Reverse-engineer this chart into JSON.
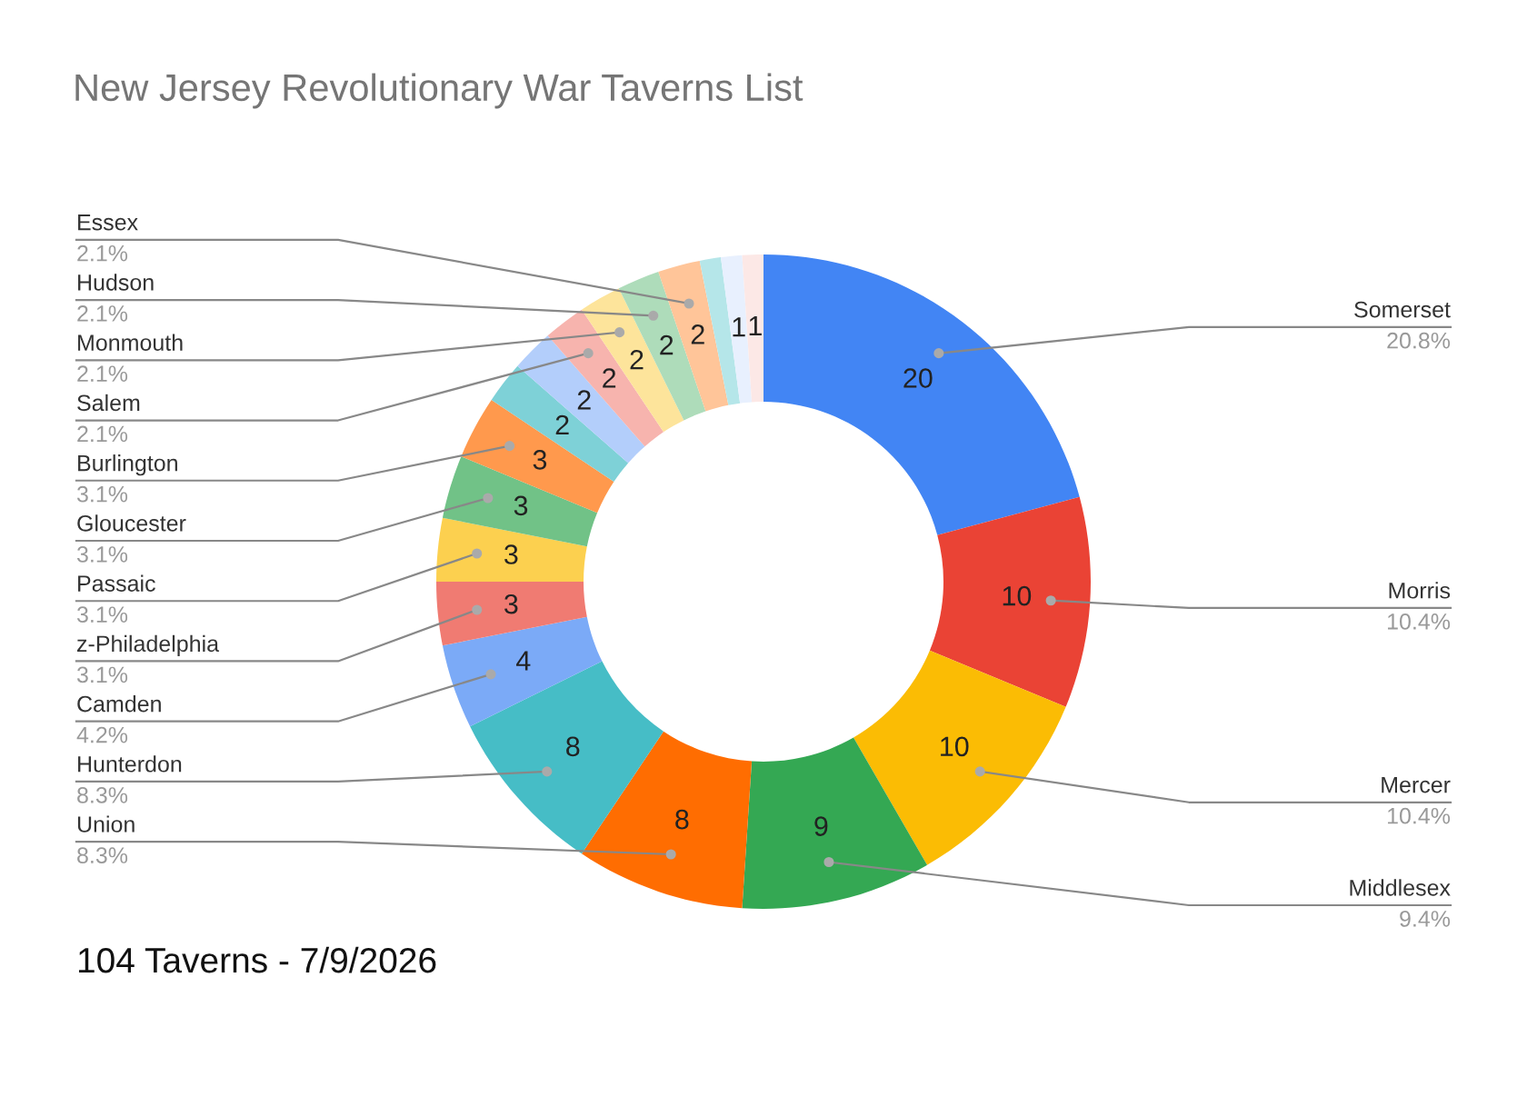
{
  "chart_data": {
    "type": "donut",
    "title": "New Jersey Revolutionary War Taverns List",
    "categories": [
      "Somerset",
      "Morris",
      "Mercer",
      "Middlesex",
      "Union",
      "Hunterdon",
      "Camden",
      "z-Philadelphia",
      "Passaic",
      "Gloucester",
      "Burlington",
      null,
      null,
      "Salem",
      "Monmouth",
      "Hudson",
      "Essex",
      null,
      null,
      null
    ],
    "values": [
      20,
      10,
      10,
      9,
      8,
      8,
      4,
      3,
      3,
      3,
      3,
      2,
      2,
      2,
      2,
      2,
      2,
      1,
      1,
      1
    ],
    "value_labels": [
      "20",
      "10",
      "10",
      "9",
      "8",
      "8",
      "4",
      "3",
      "3",
      "3",
      "3",
      "2",
      "2",
      "2",
      "2",
      "2",
      "2",
      null,
      "1",
      "1"
    ],
    "colors": [
      "#4285f4",
      "#ea4335",
      "#fbbc04",
      "#34a853",
      "#ff6d01",
      "#46bdc6",
      "#7baaf7",
      "#f07b72",
      "#fcd04f",
      "#71c287",
      "#ff994d",
      "#7ed1d7",
      "#b3cefb",
      "#f7b4ae",
      "#fde49b",
      "#aedcba",
      "#ffc599",
      "#b5e6e9",
      "#e8f0fe",
      "#fce8e6"
    ],
    "annotations": [
      "20.8%",
      "10.4%",
      "10.4%",
      "9.4%",
      "8.3%",
      "8.3%",
      "4.2%",
      "3.1%",
      "3.1%",
      "3.1%",
      "3.1%",
      "2.1%",
      "2.1%",
      "2.1%",
      "2.1%",
      "104 Taverns - 7/9/2026"
    ]
  }
}
